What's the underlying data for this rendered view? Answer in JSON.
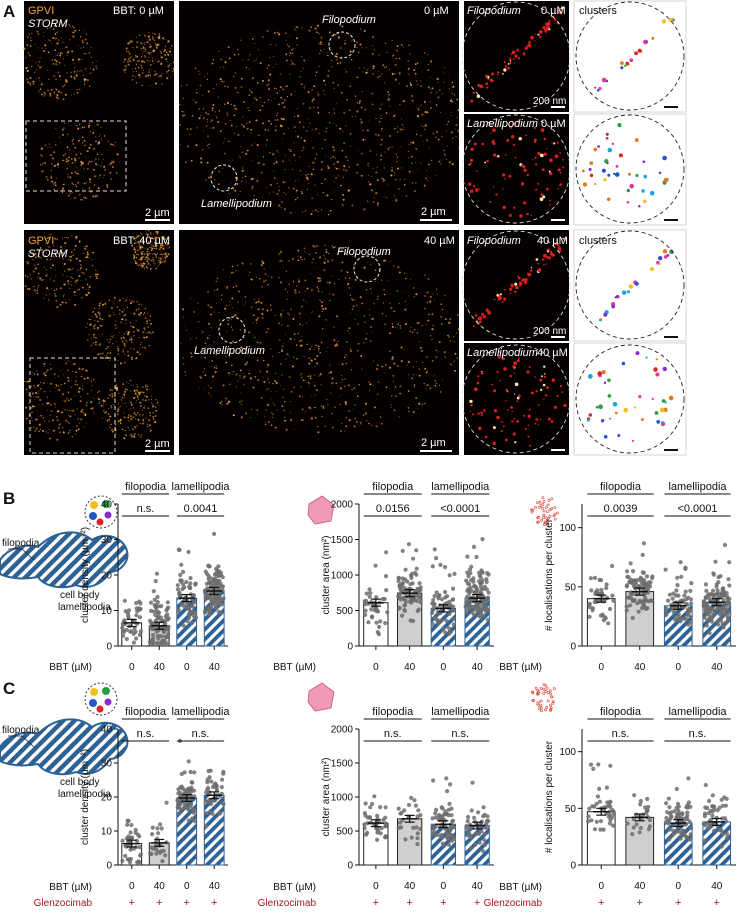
{
  "panel_letters": {
    "a": "A",
    "b": "B",
    "c": "C"
  },
  "micrographs": {
    "row_top": {
      "protein_label": "GPVI",
      "method_label": "STORM",
      "condition_label": "BBT:  0 µM",
      "zoom_condition_label": "0 µM",
      "overview_scalebar": "2 µm",
      "zoom_scalebar": "2 µm",
      "filopodium_label": "Filopodium",
      "lamellipodium_label": "Lamellipodium",
      "inset_filo_title": "Filopodium",
      "inset_filo_cond": "0 µM",
      "inset_lamel_title": "Lamellipodium",
      "inset_lamel_cond": "0 µM",
      "clusters_label": "clusters",
      "inset_scalebar": "200 nm"
    },
    "row_bottom": {
      "protein_label": "GPVI",
      "method_label": "STORM",
      "condition_label": "BBT: 40 µM",
      "zoom_condition_label": "40 µM",
      "overview_scalebar": "2 µm",
      "zoom_scalebar": "2 µm",
      "filopodium_label": "Filopodium",
      "lamellipodium_label": "Lamellipodium",
      "inset_filo_title": "Filopodium",
      "inset_filo_cond": "40 µM",
      "inset_lamel_title": "Lamellipodium",
      "inset_lamel_cond": "40 µM",
      "clusters_label": "clusters",
      "inset_scalebar": "200 nm"
    },
    "colors": {
      "localisation": "#f0a23c",
      "background": "#050000"
    }
  },
  "schematic": {
    "filopodia": "filopodia",
    "cell_body": "cell body",
    "lamellipodia": "lamellipodia"
  },
  "bbt_label": "BBT (µM)",
  "glenzocimab_label": "Glenzocimab",
  "glenzocimab_marks": [
    "+",
    "+",
    "+",
    "+"
  ],
  "group_labels": {
    "filopodia": "filopodia",
    "lamellipodia": "lamellipodia"
  },
  "colors": {
    "open_bar": "#ffffff",
    "grey_bar": "#cfcfcf",
    "hatch": "#2e6294",
    "dots": "#6d6d6d",
    "glenzocimab": "#a11a1a",
    "area_icon": "#f19ab5"
  },
  "chart_data": [
    {
      "type": "bar",
      "panel": "B",
      "ylabel": "cluster density (µm⁻²)",
      "xlabel": "BBT (µM)",
      "categories": [
        "0",
        "40",
        "0",
        "40"
      ],
      "groups": [
        "filopodia",
        "filopodia",
        "lamellipodia",
        "lamellipodia"
      ],
      "values": [
        6.5,
        5.7,
        13.5,
        15.5
      ],
      "ylim": [
        0,
        40
      ],
      "yticks": [
        0,
        10,
        20,
        30,
        40
      ],
      "significance": [
        "n.s.",
        "0.0041"
      ],
      "n_points": [
        40,
        90,
        60,
        120
      ]
    },
    {
      "type": "bar",
      "panel": "B",
      "ylabel": "cluster area (nm²)",
      "xlabel": "BBT (µM)",
      "categories": [
        "0",
        "40",
        "0",
        "40"
      ],
      "groups": [
        "filopodia",
        "filopodia",
        "lamellipodia",
        "lamellipodia"
      ],
      "values": [
        610,
        745,
        530,
        675
      ],
      "ylim": [
        0,
        2000
      ],
      "yticks": [
        0,
        500,
        1000,
        1500,
        2000
      ],
      "significance": [
        "0.0156",
        "<0.0001"
      ],
      "n_points": [
        40,
        90,
        60,
        120
      ]
    },
    {
      "type": "bar",
      "panel": "B",
      "ylabel": "# localisations per cluster",
      "xlabel": "BBT (µM)",
      "categories": [
        "0",
        "40",
        "0",
        "40"
      ],
      "groups": [
        "filopodia",
        "filopodia",
        "lamellipodia",
        "lamellipodia"
      ],
      "values": [
        40,
        46,
        34,
        37
      ],
      "ylim": [
        0,
        120
      ],
      "yticks": [
        0,
        50,
        100
      ],
      "significance": [
        "0.0039",
        "<0.0001"
      ],
      "n_points": [
        40,
        90,
        60,
        120
      ]
    },
    {
      "type": "bar",
      "panel": "C",
      "ylabel": "cluster density (µm⁻²)",
      "xlabel": "BBT (µM)",
      "categories": [
        "0",
        "40",
        "0",
        "40"
      ],
      "groups": [
        "filopodia",
        "filopodia",
        "lamellipodia",
        "lamellipodia"
      ],
      "values": [
        6.3,
        6.5,
        19.7,
        20.5
      ],
      "ylim": [
        0,
        40
      ],
      "yticks": [
        0,
        10,
        20,
        30,
        40
      ],
      "significance": [
        "n.s.",
        "n.s."
      ],
      "n_points": [
        40,
        25,
        70,
        45
      ]
    },
    {
      "type": "bar",
      "panel": "C",
      "ylabel": "cluster area (nm²)",
      "xlabel": "BBT (µM)",
      "categories": [
        "0",
        "40",
        "0",
        "40"
      ],
      "groups": [
        "filopodia",
        "filopodia",
        "lamellipodia",
        "lamellipodia"
      ],
      "values": [
        615,
        680,
        600,
        580
      ],
      "ylim": [
        0,
        2000
      ],
      "yticks": [
        0,
        500,
        1000,
        1500,
        2000
      ],
      "significance": [
        "n.s.",
        "n.s."
      ],
      "n_points": [
        40,
        25,
        70,
        45
      ]
    },
    {
      "type": "bar",
      "panel": "C",
      "ylabel": "# localisations per cluster",
      "xlabel": "BBT (µM)",
      "categories": [
        "0",
        "40",
        "0",
        "40"
      ],
      "groups": [
        "filopodia",
        "filopodia",
        "lamellipodia",
        "lamellipodia"
      ],
      "values": [
        47,
        42,
        37,
        38
      ],
      "ylim": [
        0,
        120
      ],
      "yticks": [
        0,
        50,
        100
      ],
      "significance": [
        "n.s.",
        "n.s."
      ],
      "n_points": [
        40,
        25,
        70,
        45
      ]
    }
  ]
}
